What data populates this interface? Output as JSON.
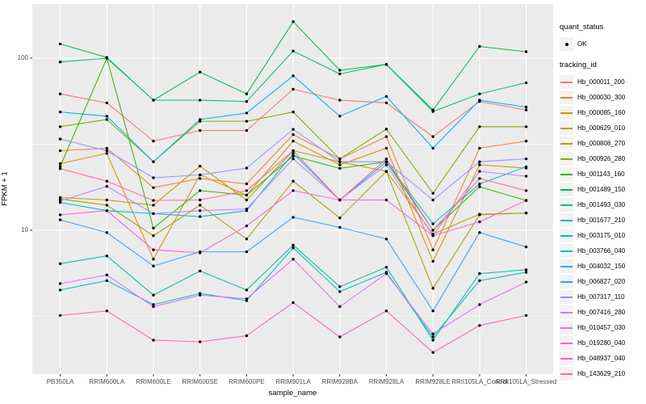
{
  "chart_data": {
    "type": "line",
    "title": "",
    "xlabel": "sample_name",
    "ylabel": "FPKM + 1",
    "y_scale": "log10",
    "y_ticks": [
      10,
      100
    ],
    "y_minor_gridlines": [
      3.162,
      31.62
    ],
    "ylim": [
      1.5,
      205
    ],
    "grid": "on",
    "legend_position": "right",
    "panel_color": "#EBEBEB",
    "gridline_color": "#FFFFFF",
    "point_color": "#000000",
    "categories": [
      "PB350LA",
      "RRIM600LA",
      "RRIM600LE",
      "RRIM600SE",
      "RRIM600PE",
      "RRIM901LA",
      "RRIM928BA",
      "RRIM928LA",
      "RRIM928LE",
      "RRII105LA_Control",
      "RRII105LA_Stressed"
    ],
    "legend": {
      "quant_status_title": "quant_status",
      "quant_status_items": [
        {
          "label": "OK",
          "shape": "point"
        }
      ],
      "tracking_id_title": "tracking_id"
    },
    "series": [
      {
        "tracking_id": "Hb_000011_200",
        "color": "#F8766D",
        "values": [
          62,
          55,
          33,
          38,
          38,
          66,
          57,
          55,
          35,
          56,
          50
        ]
      },
      {
        "tracking_id": "Hb_000030_300",
        "color": "#EA8331",
        "values": [
          29,
          30,
          17.7,
          20,
          18.6,
          36,
          26,
          35,
          7.7,
          30,
          33
        ]
      },
      {
        "tracking_id": "Hb_000085_160",
        "color": "#D89000",
        "values": [
          24.4,
          28,
          6.8,
          21,
          16,
          33,
          24,
          30,
          6.6,
          24,
          23
        ]
      },
      {
        "tracking_id": "Hb_000629_010",
        "color": "#C09B00",
        "values": [
          15.5,
          15,
          14,
          23.6,
          15,
          29,
          25,
          22,
          9.5,
          12.4,
          12.6
        ]
      },
      {
        "tracking_id": "Hb_000808_270",
        "color": "#A3A500",
        "values": [
          15.2,
          14,
          9.3,
          14,
          8.9,
          19.3,
          11.8,
          22,
          4.6,
          12.3,
          12.6
        ]
      },
      {
        "tracking_id": "Hb_000926_280",
        "color": "#7CAE00",
        "values": [
          40,
          44,
          25,
          43,
          43,
          48.7,
          26,
          38.7,
          16.4,
          40,
          40
        ]
      },
      {
        "tracking_id": "Hb_001143_160",
        "color": "#39B600",
        "values": [
          23.5,
          100,
          10.3,
          17,
          16,
          27,
          22.9,
          25,
          10,
          17.9,
          14.9
        ]
      },
      {
        "tracking_id": "Hb_001489_150",
        "color": "#00BB4E",
        "values": [
          121,
          101,
          57,
          83,
          62,
          163,
          85,
          92,
          50,
          117,
          109
        ]
      },
      {
        "tracking_id": "Hb_001493_030",
        "color": "#00BF7D",
        "values": [
          95,
          100,
          57,
          57,
          56,
          110,
          81,
          92,
          49,
          62,
          72
        ]
      },
      {
        "tracking_id": "Hb_001677_210",
        "color": "#00C1A3",
        "values": [
          6.4,
          7.1,
          4.2,
          5.8,
          4.5,
          8.2,
          4.7,
          6.1,
          2.3,
          5.6,
          5.9
        ]
      },
      {
        "tracking_id": "Hb_003175_010",
        "color": "#00BFC4",
        "values": [
          4.5,
          5.1,
          3.7,
          4.3,
          3.9,
          7.9,
          4.4,
          5.7,
          2.4,
          5.1,
          5.7
        ]
      },
      {
        "tracking_id": "Hb_003766_040",
        "color": "#00BAE0",
        "values": [
          14.5,
          13,
          12.5,
          12,
          13,
          28,
          15,
          25,
          10.9,
          18.6,
          23.4
        ]
      },
      {
        "tracking_id": "Hb_004032_150",
        "color": "#00B0F6",
        "values": [
          48.7,
          46,
          25,
          44,
          48,
          79,
          46,
          60,
          30,
          57,
          52
        ]
      },
      {
        "tracking_id": "Hb_006827_020",
        "color": "#35A2FF",
        "values": [
          11.5,
          9.7,
          6.2,
          7.5,
          7.5,
          11.9,
          10.4,
          8.9,
          3.4,
          9.7,
          8
        ]
      },
      {
        "tracking_id": "Hb_007317_110",
        "color": "#9590FF",
        "values": [
          33.9,
          29,
          20.2,
          21,
          23,
          38.6,
          25,
          25,
          15,
          25,
          26
        ]
      },
      {
        "tracking_id": "Hb_007416_280",
        "color": "#C77CFF",
        "values": [
          14.8,
          18,
          12.5,
          13,
          13.3,
          26,
          15,
          24,
          9.3,
          22,
          20.6
        ]
      },
      {
        "tracking_id": "Hb_010457_030",
        "color": "#E76BF3",
        "values": [
          4.9,
          5.5,
          3.6,
          4.2,
          4.0,
          6.8,
          3.6,
          5.6,
          2.5,
          3.7,
          5.0
        ]
      },
      {
        "tracking_id": "Hb_019280_040",
        "color": "#FA62DB",
        "values": [
          12.3,
          13,
          7.7,
          7.4,
          10.6,
          17,
          15,
          15,
          9.3,
          11.2,
          14.9
        ]
      },
      {
        "tracking_id": "Hb_048937_040",
        "color": "#FF62BC",
        "values": [
          3.2,
          3.4,
          2.3,
          2.25,
          2.44,
          3.8,
          2.4,
          3.4,
          1.95,
          2.8,
          3.2
        ]
      },
      {
        "tracking_id": "Hb_143629_210",
        "color": "#FF6A98",
        "values": [
          22.8,
          19.3,
          14.9,
          15,
          17,
          29,
          15,
          26,
          10,
          20,
          17
        ]
      }
    ]
  }
}
